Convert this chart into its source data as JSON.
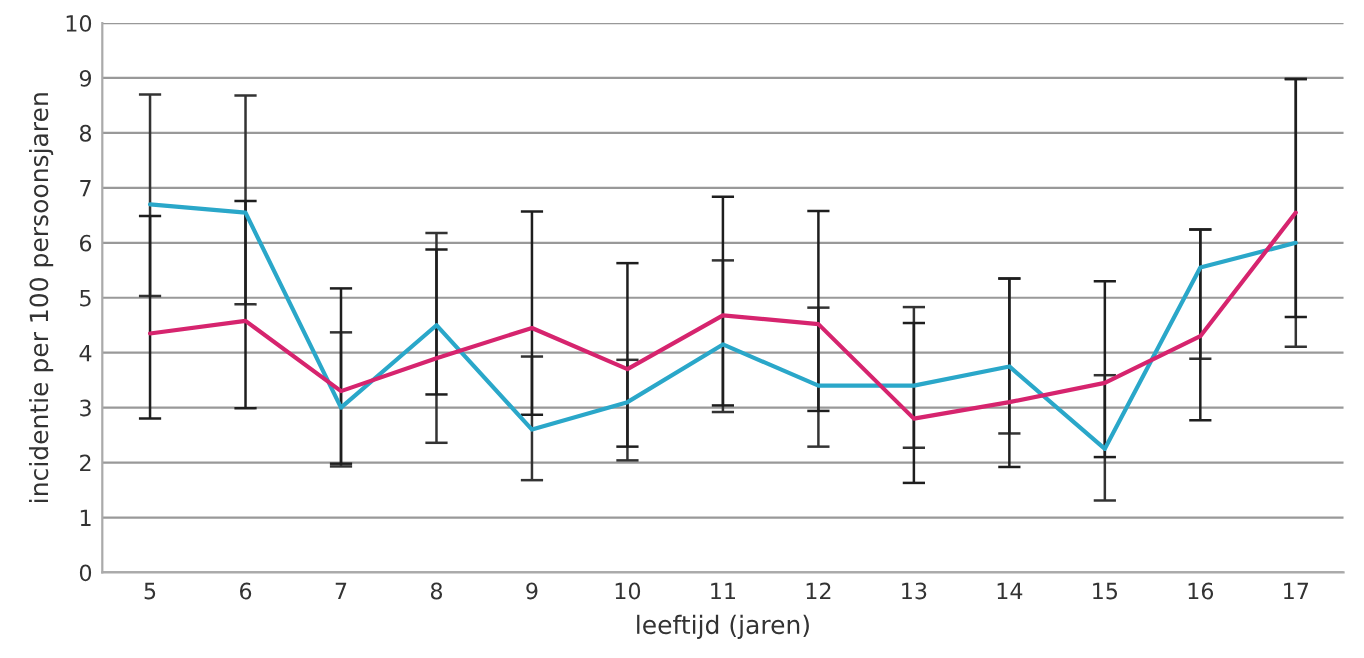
{
  "chart_data": {
    "type": "line",
    "xlabel": "leeftijd (jaren)",
    "ylabel": "incidentie per 100 persoonsjaren",
    "categories": [
      "5",
      "6",
      "7",
      "8",
      "9",
      "10",
      "11",
      "12",
      "13",
      "14",
      "15",
      "16",
      "17"
    ],
    "series": [
      {
        "color": "#2aa7c9",
        "values": [
          6.7,
          6.55,
          3.0,
          4.5,
          2.6,
          3.1,
          4.15,
          3.4,
          3.4,
          3.75,
          2.25,
          5.55,
          6.0
        ],
        "errors": [
          [
            5.03,
            8.7
          ],
          [
            4.88,
            8.68
          ],
          [
            1.93,
            4.37
          ],
          [
            2.36,
            6.18
          ],
          [
            1.68,
            3.93
          ],
          [
            2.04,
            3.87
          ],
          [
            2.92,
            5.68
          ],
          [
            2.29,
            4.82
          ],
          [
            2.27,
            4.83
          ],
          [
            2.53,
            5.35
          ],
          [
            1.31,
            3.59
          ],
          [
            3.89,
            6.24
          ],
          [
            4.11,
            8.98
          ]
        ]
      },
      {
        "color": "#d6246e",
        "values": [
          4.35,
          4.58,
          3.3,
          3.9,
          4.45,
          3.7,
          4.68,
          4.52,
          2.8,
          3.1,
          3.45,
          4.3,
          6.55
        ],
        "errors": [
          [
            2.8,
            6.49
          ],
          [
            2.99,
            6.76
          ],
          [
            1.98,
            5.17
          ],
          [
            3.24,
            5.88
          ],
          [
            2.87,
            6.57
          ],
          [
            2.29,
            5.63
          ],
          [
            3.04,
            6.84
          ],
          [
            2.94,
            6.58
          ],
          [
            1.63,
            4.54
          ],
          [
            1.92,
            5.35
          ],
          [
            2.1,
            5.3
          ],
          [
            2.77,
            6.24
          ],
          [
            4.65,
            8.98
          ]
        ]
      }
    ],
    "ylim": [
      0,
      10
    ],
    "yticks": [
      0,
      1,
      2,
      3,
      4,
      5,
      6,
      7,
      8,
      9,
      10
    ],
    "grid": "y",
    "marker": "none",
    "line_style": "solid"
  }
}
